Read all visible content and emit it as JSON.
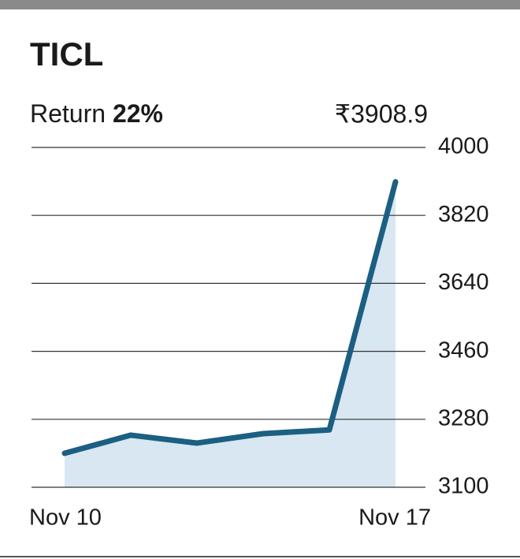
{
  "chart_data": {
    "type": "line",
    "title": "TICL",
    "annotation": {
      "text": "Return",
      "value": "22%"
    },
    "categories": [
      "Nov 10",
      null,
      null,
      null,
      null,
      "Nov 17"
    ],
    "series": [
      {
        "name": "TICL",
        "color": "#1b5f82",
        "fill": "#d8e7f2",
        "values": [
          3190,
          3238,
          3217,
          3242,
          3252,
          3908.9
        ],
        "value_labels": [
          null,
          null,
          null,
          null,
          null,
          "₹3908.9"
        ]
      }
    ],
    "ylim": [
      3100,
      4000
    ],
    "yticks": [
      3100,
      3280,
      3460,
      3640,
      3820,
      4000
    ],
    "grid": true
  }
}
